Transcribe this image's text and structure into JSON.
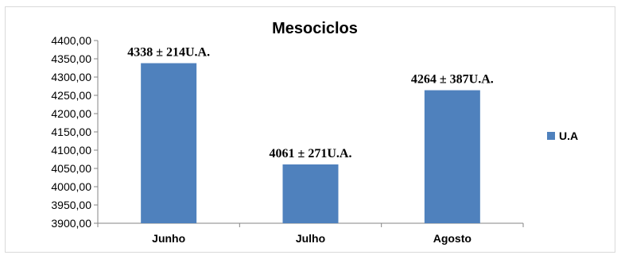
{
  "chart_data": {
    "type": "bar",
    "title": "Mesociclos",
    "xlabel": "",
    "ylabel": "",
    "categories": [
      "Junho",
      "Julho",
      "Agosto"
    ],
    "series": [
      {
        "name": "U.A",
        "color": "#4f81bd",
        "values": [
          4338,
          4061,
          4264
        ],
        "data_labels": [
          "4338 ± 214U.A.",
          "4061 ± 271U.A.",
          "4264 ± 387U.A."
        ]
      }
    ],
    "ylim": [
      3900,
      4400
    ],
    "y_ticks": [
      3900,
      3950,
      4000,
      4050,
      4100,
      4150,
      4200,
      4250,
      4300,
      4350,
      4400
    ],
    "y_tick_labels": [
      "3900,00",
      "3950,00",
      "4000,00",
      "4050,00",
      "4100,00",
      "4150,00",
      "4200,00",
      "4250,00",
      "4300,00",
      "4350,00",
      "4400,00"
    ],
    "grid": false,
    "legend": {
      "placement": "right",
      "entries": [
        "U.A"
      ]
    }
  }
}
